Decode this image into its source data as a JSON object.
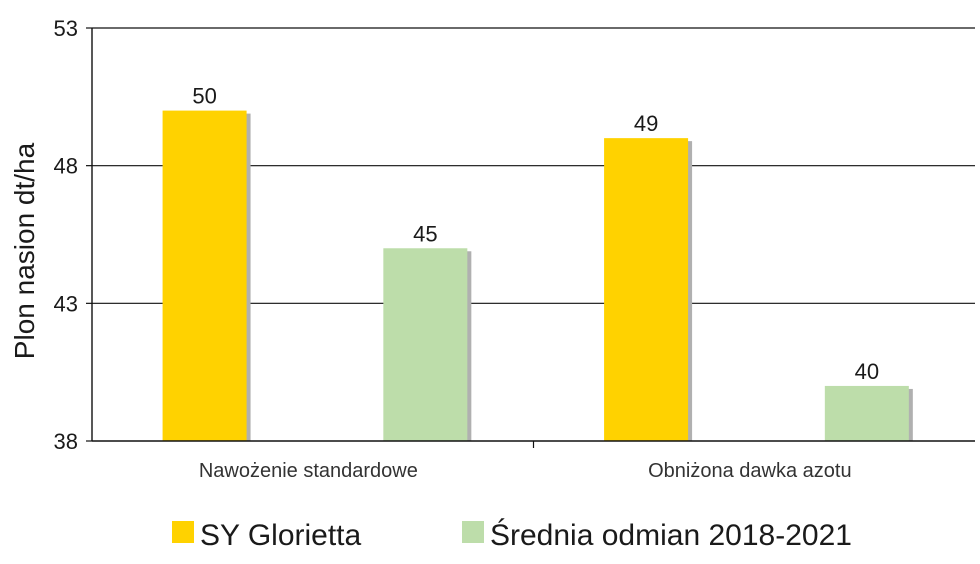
{
  "chart_data": {
    "type": "bar",
    "categories": [
      "Nawożenie standardowe",
      "Obniżona dawka azotu"
    ],
    "series": [
      {
        "name": "SY Glorietta",
        "values": [
          50,
          49
        ],
        "color": "#FFD200"
      },
      {
        "name": "Średnia odmian 2018-2021",
        "values": [
          45,
          40
        ],
        "color": "#BDDDAA"
      }
    ],
    "ylabel": "Plon nasion dt/ha",
    "ylim": [
      38,
      53
    ],
    "yticks": [
      38,
      43,
      48,
      53
    ],
    "grid": true,
    "legend_position": "bottom"
  }
}
